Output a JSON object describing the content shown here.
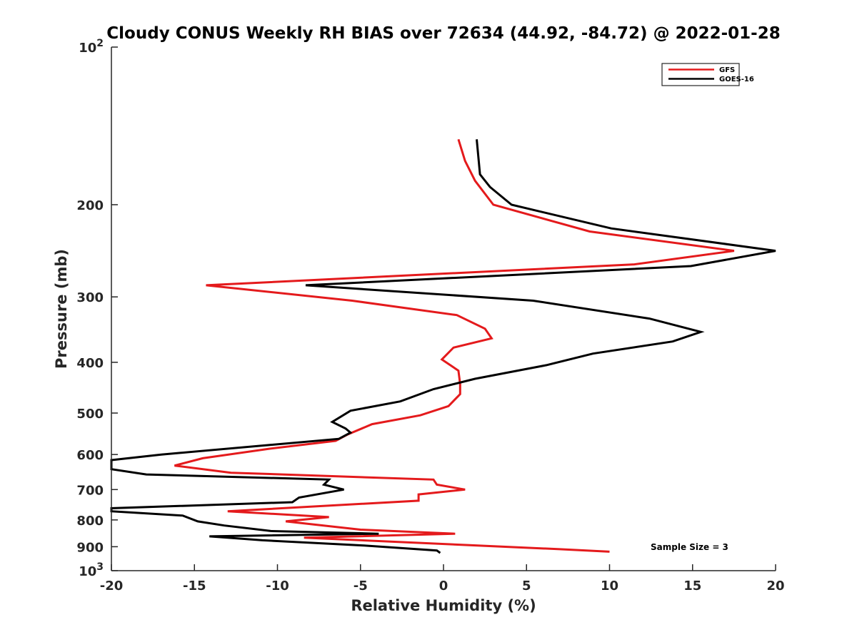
{
  "chart_data": {
    "type": "line",
    "title": "Cloudy CONUS Weekly RH BIAS over 72634 (44.92, -84.72) @ 2022-01-28",
    "xlabel": "Relative Humidity (%)",
    "ylabel": "Pressure (mb)",
    "xlim": [
      -20,
      20
    ],
    "ylim": [
      100,
      1000
    ],
    "y_scale": "log",
    "y_reversed": true,
    "grid": false,
    "legend_position": "top-right",
    "x_ticks": [
      "-20",
      "-15",
      "-10",
      "-5",
      "0",
      "5",
      "10",
      "15",
      "20"
    ],
    "y_ticks": [
      {
        "value": 100,
        "base": "10",
        "exp": "2"
      },
      {
        "value": 200,
        "label": "200"
      },
      {
        "value": 300,
        "label": "300"
      },
      {
        "value": 400,
        "label": "400"
      },
      {
        "value": 500,
        "label": "500"
      },
      {
        "value": 600,
        "label": "600"
      },
      {
        "value": 700,
        "label": "700"
      },
      {
        "value": 800,
        "label": "800"
      },
      {
        "value": 900,
        "label": "900"
      },
      {
        "value": 1000,
        "base": "10",
        "exp": "3"
      }
    ],
    "annotation": "Sample Size = 3",
    "series": [
      {
        "name": "GFS",
        "color": "#e41a1c",
        "points": [
          [
            0.9,
            150
          ],
          [
            1.3,
            165
          ],
          [
            1.9,
            180
          ],
          [
            3.0,
            200
          ],
          [
            8.8,
            225
          ],
          [
            17.5,
            245
          ],
          [
            11.5,
            260
          ],
          [
            -14.3,
            285
          ],
          [
            -5.5,
            305
          ],
          [
            0.8,
            325
          ],
          [
            2.5,
            345
          ],
          [
            2.9,
            360
          ],
          [
            0.6,
            375
          ],
          [
            -0.1,
            395
          ],
          [
            0.9,
            415
          ],
          [
            1.0,
            440
          ],
          [
            1.0,
            460
          ],
          [
            0.3,
            485
          ],
          [
            -1.4,
            505
          ],
          [
            -4.3,
            525
          ],
          [
            -5.8,
            550
          ],
          [
            -6.5,
            565
          ],
          [
            -10.5,
            585
          ],
          [
            -14.5,
            610
          ],
          [
            -16.2,
            630
          ],
          [
            -12.8,
            650
          ],
          [
            -0.6,
            670
          ],
          [
            -0.4,
            685
          ],
          [
            1.3,
            700
          ],
          [
            -1.5,
            715
          ],
          [
            -1.5,
            735
          ],
          [
            -13.0,
            770
          ],
          [
            -6.9,
            790
          ],
          [
            -9.5,
            805
          ],
          [
            -5.0,
            835
          ],
          [
            0.7,
            850
          ],
          [
            -8.4,
            865
          ],
          [
            7.0,
            910
          ],
          [
            10.0,
            920
          ]
        ]
      },
      {
        "name": "GOES-16",
        "color": "#000000",
        "points": [
          [
            2.0,
            150
          ],
          [
            2.2,
            175
          ],
          [
            2.8,
            185
          ],
          [
            4.1,
            200
          ],
          [
            10.1,
            222
          ],
          [
            20.0,
            245
          ],
          [
            14.9,
            262
          ],
          [
            -8.3,
            285
          ],
          [
            5.4,
            305
          ],
          [
            12.4,
            330
          ],
          [
            15.5,
            350
          ],
          [
            13.8,
            365
          ],
          [
            9.0,
            385
          ],
          [
            6.2,
            405
          ],
          [
            1.9,
            430
          ],
          [
            -0.6,
            450
          ],
          [
            -2.6,
            475
          ],
          [
            -5.6,
            495
          ],
          [
            -6.7,
            520
          ],
          [
            -5.9,
            535
          ],
          [
            -5.6,
            545
          ],
          [
            -6.3,
            560
          ],
          [
            -17.0,
            600
          ],
          [
            -20.0,
            615
          ],
          [
            -20.0,
            640
          ],
          [
            -17.9,
            655
          ],
          [
            -6.9,
            670
          ],
          [
            -7.2,
            685
          ],
          [
            -6.0,
            700
          ],
          [
            -8.7,
            725
          ],
          [
            -9.1,
            740
          ],
          [
            -20.0,
            760
          ],
          [
            -20.0,
            770
          ],
          [
            -15.7,
            785
          ],
          [
            -14.8,
            805
          ],
          [
            -13.2,
            820
          ],
          [
            -10.4,
            840
          ],
          [
            -3.9,
            850
          ],
          [
            -14.1,
            860
          ],
          [
            -10.9,
            875
          ],
          [
            -4.9,
            895
          ],
          [
            -0.4,
            915
          ],
          [
            -0.2,
            925
          ]
        ]
      }
    ]
  }
}
